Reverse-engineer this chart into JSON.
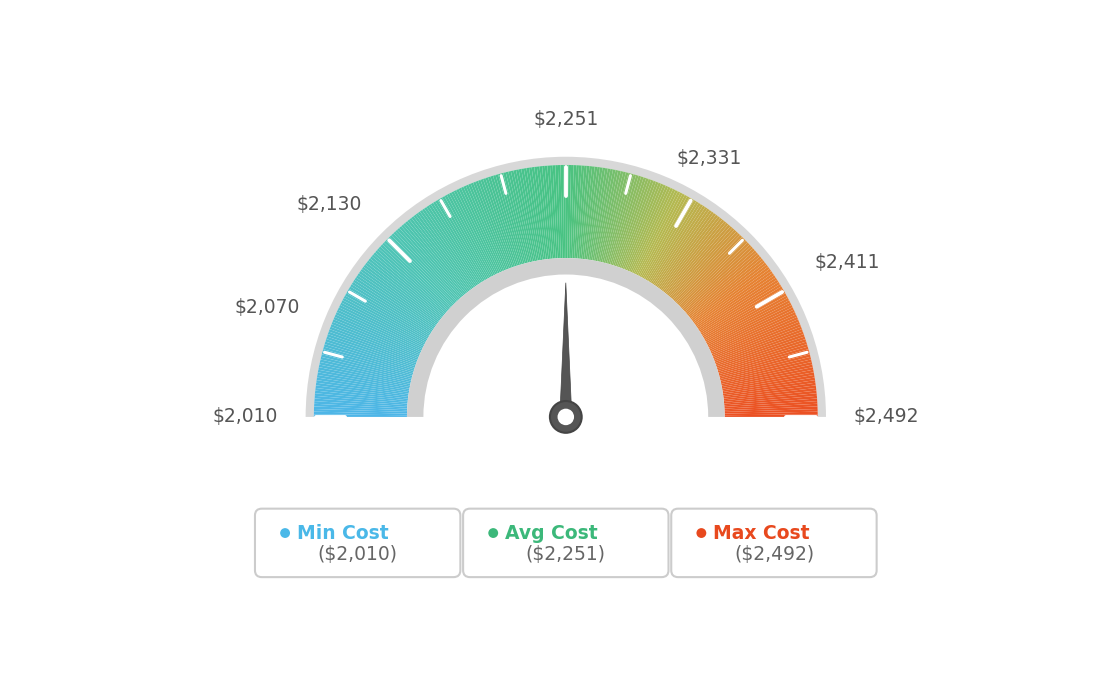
{
  "min_val": 2010,
  "max_val": 2492,
  "avg_val": 2251,
  "needle_value": 2251,
  "tick_labels": [
    "$2,010",
    "$2,070",
    "$2,130",
    "$2,251",
    "$2,331",
    "$2,411",
    "$2,492"
  ],
  "tick_values": [
    2010,
    2070,
    2130,
    2251,
    2331,
    2411,
    2492
  ],
  "color_stops": [
    [
      0.0,
      [
        78,
        182,
        232
      ]
    ],
    [
      0.25,
      [
        78,
        196,
        180
      ]
    ],
    [
      0.5,
      [
        72,
        195,
        130
      ]
    ],
    [
      0.65,
      [
        180,
        185,
        80
      ]
    ],
    [
      0.8,
      [
        230,
        130,
        50
      ]
    ],
    [
      1.0,
      [
        235,
        80,
        35
      ]
    ]
  ],
  "legend": [
    {
      "label": "Min Cost",
      "value": "($2,010)",
      "color": "#4ab8e8"
    },
    {
      "label": "Avg Cost",
      "value": "($2,251)",
      "color": "#3cb87a"
    },
    {
      "label": "Max Cost",
      "value": "($2,492)",
      "color": "#e8491e"
    }
  ],
  "bg_color": "#ffffff"
}
